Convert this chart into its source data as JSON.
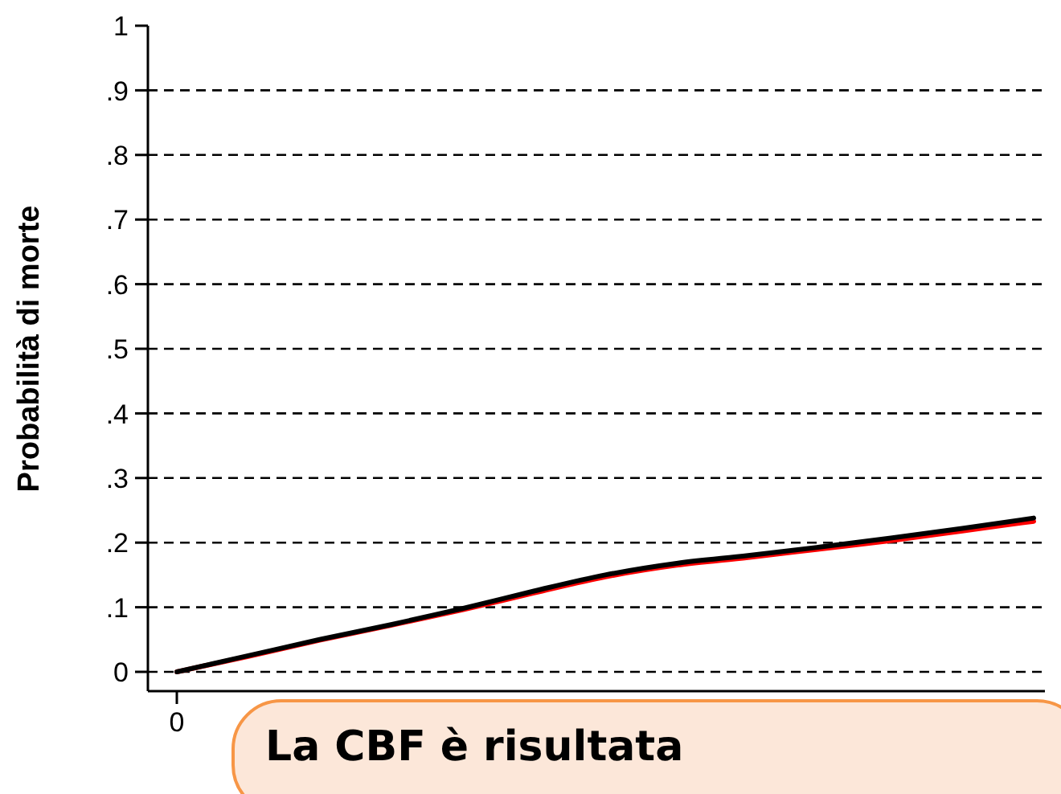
{
  "chart_data": {
    "type": "line",
    "ylabel": "Probabilità di morte",
    "categories": [
      "0",
      null,
      null,
      null,
      null,
      null,
      null,
      null,
      null,
      null,
      null,
      null,
      null
    ],
    "series": [
      {
        "color": "#ff0000",
        "values": [
          0,
          0.024,
          0.049,
          0.072,
          0.096,
          0.122,
          0.147,
          0.165,
          0.177,
          0.19,
          0.203,
          0.218,
          0.233
        ]
      },
      {
        "color": "#000000",
        "values": [
          0,
          0.025,
          0.05,
          0.073,
          0.098,
          0.125,
          0.15,
          0.168,
          0.18,
          0.193,
          0.207,
          0.222,
          0.238
        ]
      }
    ],
    "ylim": [
      0,
      1
    ],
    "yticks": [
      {
        "value": 0,
        "label": "0"
      },
      {
        "value": 0.1,
        "label": ".1"
      },
      {
        "value": 0.2,
        "label": ".2"
      },
      {
        "value": 0.3,
        "label": ".3"
      },
      {
        "value": 0.4,
        "label": ".4"
      },
      {
        "value": 0.5,
        "label": ".5"
      },
      {
        "value": 0.6,
        "label": ".6"
      },
      {
        "value": 0.7,
        "label": ".7"
      },
      {
        "value": 0.8,
        "label": ".8"
      },
      {
        "value": 0.9,
        "label": ".9"
      },
      {
        "value": 1,
        "label": "1"
      }
    ],
    "grid": "y",
    "line_style": "solid",
    "annotations": [
      "La CBF è risultata"
    ]
  }
}
